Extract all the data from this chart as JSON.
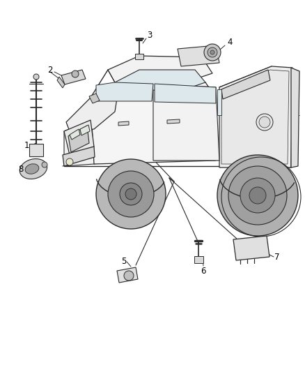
{
  "background_color": "#ffffff",
  "fig_width": 4.38,
  "fig_height": 5.33,
  "dpi": 100,
  "line_color": "#2a2a2a",
  "label_color": "#000000",
  "label_fontsize": 8.5,
  "truck_img_b64": ""
}
